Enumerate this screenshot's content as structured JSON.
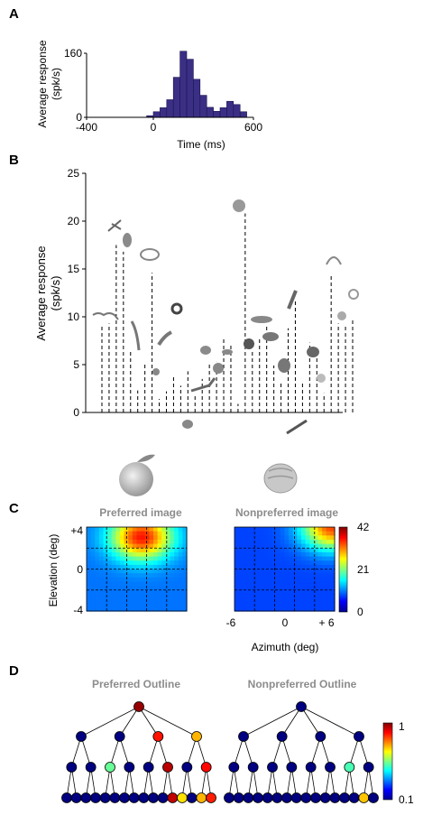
{
  "panel_letters": {
    "a": "A",
    "b": "B",
    "c": "C",
    "d": "D"
  },
  "chart_data": [
    {
      "panel": "A",
      "type": "bar",
      "ylabel_line1": "Average response",
      "ylabel_line2": "(spk/s)",
      "xlabel": "Time (ms)",
      "xlim": [
        -400,
        600
      ],
      "ylim": [
        0,
        160
      ],
      "xticks": [
        -400,
        0,
        600
      ],
      "yticks": [
        0,
        160
      ],
      "bin_width": 40,
      "bins": [
        {
          "x": -40,
          "y": 4
        },
        {
          "x": 0,
          "y": 14
        },
        {
          "x": 40,
          "y": 24
        },
        {
          "x": 80,
          "y": 44
        },
        {
          "x": 120,
          "y": 100
        },
        {
          "x": 160,
          "y": 165
        },
        {
          "x": 200,
          "y": 145
        },
        {
          "x": 240,
          "y": 95
        },
        {
          "x": 280,
          "y": 55
        },
        {
          "x": 320,
          "y": 25
        },
        {
          "x": 360,
          "y": 15
        },
        {
          "x": 400,
          "y": 24
        },
        {
          "x": 440,
          "y": 40
        },
        {
          "x": 480,
          "y": 32
        },
        {
          "x": 520,
          "y": 14
        }
      ]
    },
    {
      "panel": "B",
      "type": "bar",
      "ylabel_line1": "Average response",
      "ylabel_line2": "(spk/s)",
      "ylim": [
        0,
        25
      ],
      "yticks": [
        0,
        5,
        10,
        15,
        20,
        25
      ],
      "values": [
        9.2,
        9.3,
        17.5,
        16.8,
        6.4,
        2.3,
        5.0,
        14.6,
        1.4,
        2.2,
        3.9,
        2.8,
        4.3,
        1.9,
        3.5,
        5.0,
        5.3,
        7.8,
        7.1,
        0.9,
        20.8,
        6.4,
        7.9,
        9.1,
        4.9,
        3.3,
        8.8,
        11.6,
        3.2,
        7.3,
        6.5,
        2.0,
        14.4,
        9.3,
        9.1,
        9.9
      ]
    },
    {
      "panel": "C",
      "type": "heatmap",
      "maps": [
        {
          "title": "Preferred image",
          "hot_x": 0.55,
          "hot_y": 0.88,
          "peak": 36,
          "base": 10
        },
        {
          "title": "Nonpreferred image",
          "hot_x": 0.98,
          "hot_y": 1.0,
          "peak": 34,
          "base": 8
        }
      ],
      "ylabel": "Elevation (deg)",
      "xlabel": "Azimuth (deg)",
      "yticks": [
        "+4",
        "0",
        "-4"
      ],
      "xticks": [
        "-6",
        "0",
        "+ 6"
      ],
      "colorbar_ticks": [
        "42",
        "21",
        "0"
      ],
      "vmin": 0,
      "vmax": 42
    },
    {
      "panel": "D",
      "type": "tree",
      "titles": [
        "Preferred Outline",
        "Nonpreferred Outline"
      ],
      "colorbar_ticks": [
        "1",
        "0.1"
      ],
      "trees": [
        {
          "levels": [
            [
              0.95
            ],
            [
              0.1,
              0.1,
              0.72,
              0.5
            ],
            [
              0.1,
              0.1,
              0.3,
              0.1,
              0.1,
              0.88,
              0.1,
              0.74
            ],
            [
              0.1,
              0.1,
              0.1,
              0.1,
              0.1,
              0.1,
              0.1,
              0.1,
              0.1,
              0.1,
              0.1,
              0.86,
              0.45,
              0.1,
              0.5,
              0.7
            ]
          ]
        },
        {
          "levels": [
            [
              0.1
            ],
            [
              0.1,
              0.1,
              0.1,
              0.1
            ],
            [
              0.1,
              0.1,
              0.1,
              0.1,
              0.1,
              0.1,
              0.28,
              0.1
            ],
            [
              0.1,
              0.1,
              0.1,
              0.1,
              0.1,
              0.1,
              0.1,
              0.1,
              0.1,
              0.1,
              0.1,
              0.1,
              0.1,
              0.1,
              0.48,
              0.1
            ]
          ]
        }
      ]
    }
  ]
}
